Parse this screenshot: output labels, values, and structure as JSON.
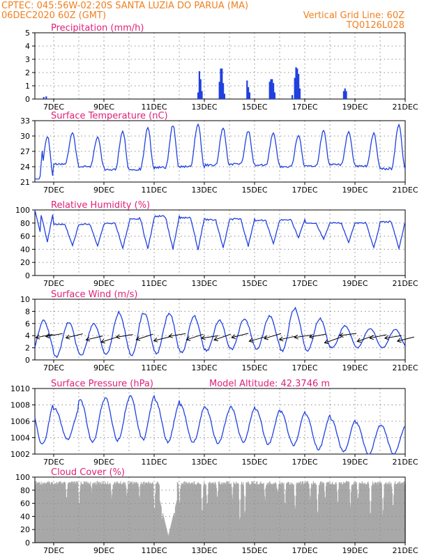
{
  "header": {
    "line1_left": "CPTEC:   045:56W-02:20S   SANTA LUZIA DO PARUA (MA)",
    "line2_left": "06DEC2020 60Z (GMT)",
    "line2_right": "Vertical Grid Line: 60Z",
    "line3_right": "TQ0126L028"
  },
  "colors": {
    "header": "#f08020",
    "title": "#e0207a",
    "series": "#2040e0",
    "cloud": "#a8a8a8",
    "grid": "#8c8c8c"
  },
  "x_labels": [
    "7DEC",
    "9DEC",
    "11DEC",
    "13DEC",
    "15DEC",
    "17DEC",
    "19DEC",
    "21DEC"
  ],
  "chart_data": [
    {
      "id": "precip",
      "type": "bar",
      "title": "Precipitation (mm/h)",
      "ylim": [
        0,
        5
      ],
      "yticks": [
        "0",
        "1",
        "2",
        "3",
        "4",
        "5"
      ],
      "x_range_days": [
        6.25,
        21
      ],
      "grid": true,
      "bars": [
        [
          6.6,
          0.15
        ],
        [
          6.7,
          0.2
        ],
        [
          12.75,
          0.5
        ],
        [
          12.8,
          2.1
        ],
        [
          12.85,
          1.5
        ],
        [
          12.9,
          0.6
        ],
        [
          13.6,
          1.3
        ],
        [
          13.65,
          2.3
        ],
        [
          13.7,
          2.3
        ],
        [
          13.75,
          1.2
        ],
        [
          13.8,
          0.4
        ],
        [
          14.7,
          1.4
        ],
        [
          14.75,
          0.9
        ],
        [
          14.8,
          0.5
        ],
        [
          15.6,
          1.3
        ],
        [
          15.65,
          1.5
        ],
        [
          15.7,
          1.5
        ],
        [
          15.75,
          1.2
        ],
        [
          15.8,
          0.5
        ],
        [
          16.5,
          0.3
        ],
        [
          16.6,
          1.6
        ],
        [
          16.65,
          2.4
        ],
        [
          16.7,
          2.3
        ],
        [
          16.75,
          1.9
        ],
        [
          16.8,
          0.8
        ],
        [
          18.55,
          0.6
        ],
        [
          18.6,
          0.8
        ],
        [
          18.65,
          0.6
        ]
      ]
    },
    {
      "id": "temp",
      "type": "line",
      "title": "Surface Temperature (nC)",
      "ylim": [
        21,
        33
      ],
      "yticks": [
        "21",
        "24",
        "27",
        "30",
        "33"
      ],
      "x_range_days": [
        6.25,
        21
      ],
      "grid": true,
      "series": [
        {
          "min": [
            21.5,
            24.5,
            24,
            23.5,
            23.5,
            23.8,
            24,
            24.3,
            24.5,
            24.3,
            24,
            24.2,
            24.4,
            24.1,
            23.6
          ],
          "max": [
            30,
            30.5,
            29.8,
            31,
            31.5,
            32,
            32.5,
            31.5,
            31,
            30.5,
            30.2,
            31,
            30.8,
            30.5,
            32
          ]
        }
      ]
    },
    {
      "id": "rh",
      "type": "line",
      "title": "Relative Humidity (%)",
      "ylim": [
        0,
        100
      ],
      "yticks": [
        "0",
        "20",
        "40",
        "60",
        "80",
        "100"
      ],
      "x_range_days": [
        6.25,
        21
      ],
      "grid": true,
      "series": [
        {
          "min": [
            52,
            45,
            45,
            42,
            40,
            40,
            40,
            42,
            45,
            48,
            58,
            55,
            50,
            42,
            40
          ],
          "max": [
            100,
            78,
            78,
            80,
            87,
            90,
            88,
            85,
            86,
            84,
            85,
            80,
            80,
            80,
            82
          ]
        }
      ]
    },
    {
      "id": "wind",
      "type": "line",
      "title": "Surface Wind (m/s)",
      "ylim": [
        0,
        10
      ],
      "yticks": [
        "0",
        "2",
        "4",
        "6",
        "8",
        "10"
      ],
      "x_range_days": [
        6.25,
        21
      ],
      "grid": true,
      "series": [
        {
          "min": [
            1,
            0.5,
            0.8,
            1,
            0.8,
            1,
            1.2,
            1.5,
            1.8,
            1.8,
            1.5,
            1.5,
            2,
            2,
            2
          ],
          "max": [
            6.5,
            6.2,
            6,
            7.8,
            7.8,
            7.7,
            7.2,
            6.5,
            6.8,
            7.2,
            8.5,
            6.8,
            5.6,
            5.2,
            5
          ]
        }
      ],
      "arrow_days": [
        6.4,
        6.8,
        7.6,
        8.4,
        9.0,
        9.6,
        10.4,
        11.1,
        11.7,
        12.4,
        13.0,
        13.5,
        14.2,
        14.9,
        15.5,
        16.1,
        16.7,
        17.3,
        17.9,
        18.5,
        19.2,
        19.7,
        20.3,
        20.8
      ]
    },
    {
      "id": "press",
      "type": "line",
      "title": "Surface Pressure (hPa)",
      "annotation": "Model Altitude: 42.3746 m",
      "ylim": [
        1002,
        1010
      ],
      "yticks": [
        "1002",
        "1004",
        "1006",
        "1008",
        "1010"
      ],
      "x_range_days": [
        6.25,
        21
      ],
      "grid": true,
      "series": [
        {
          "max": [
            1008.3,
            1007.5,
            1008.7,
            1009,
            1009.2,
            1008.5,
            1008,
            1007.6,
            1007.8,
            1007.5,
            1007.2,
            1006.8,
            1006.2,
            1005.8,
            1005.5
          ],
          "min": [
            1003.2,
            1003.8,
            1003.5,
            1003.7,
            1003.8,
            1003.5,
            1003.4,
            1003.3,
            1003.5,
            1003.2,
            1003.1,
            1002.6,
            1002.3,
            1002,
            1002
          ]
        }
      ]
    },
    {
      "id": "cloud",
      "type": "bar",
      "title": "Cloud Cover (%)",
      "ylim": [
        0,
        100
      ],
      "yticks": [
        "0",
        "20",
        "40",
        "60",
        "80",
        "100"
      ],
      "x_range_days": [
        6.25,
        21
      ],
      "grid": true,
      "dips": [
        [
          7.5,
          60
        ],
        [
          8.0,
          45
        ],
        [
          8.5,
          70
        ],
        [
          9.3,
          58
        ],
        [
          9.9,
          65
        ],
        [
          10.4,
          60
        ],
        [
          11.0,
          40
        ],
        [
          11.3,
          20
        ],
        [
          11.5,
          10
        ],
        [
          11.8,
          25
        ],
        [
          12.0,
          50
        ],
        [
          12.9,
          30
        ],
        [
          13.1,
          45
        ],
        [
          13.5,
          55
        ],
        [
          14.1,
          60
        ],
        [
          14.4,
          20
        ],
        [
          14.6,
          35
        ],
        [
          15.4,
          55
        ],
        [
          15.9,
          65
        ],
        [
          16.2,
          50
        ],
        [
          16.6,
          40
        ],
        [
          17.2,
          60
        ],
        [
          17.5,
          35
        ],
        [
          17.8,
          60
        ],
        [
          18.3,
          50
        ],
        [
          18.8,
          45
        ],
        [
          19.1,
          55
        ],
        [
          19.6,
          25
        ],
        [
          20.1,
          30
        ],
        [
          20.5,
          40
        ]
      ]
    }
  ]
}
